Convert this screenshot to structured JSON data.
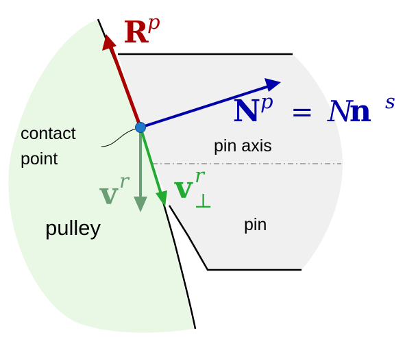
{
  "labels": {
    "contact_point_line1": "contact",
    "contact_point_line2": "point",
    "pin_axis": "pin axis",
    "pin": "pin",
    "pulley": "pulley"
  },
  "vectors": {
    "R": {
      "symbol": "R",
      "superscript": "p"
    },
    "N": {
      "symbol": "N",
      "superscript": "p",
      "equals": "=",
      "scalar": "N",
      "unit": "n",
      "unit_superscript": "s"
    },
    "v": {
      "symbol": "v",
      "superscript": "r"
    },
    "v_perp": {
      "symbol": "v",
      "superscript": "r",
      "subscript": "⊥"
    }
  },
  "colors": {
    "pulley_fill": "#e8f8e4",
    "pin_fill": "#f0f0f0",
    "outline": "#000000",
    "dashed_axis": "#808080",
    "R_arrow": "#aa0000",
    "N_arrow": "#0000aa",
    "v_arrow": "#6a9e74",
    "v_perp_arrow": "#22aa33",
    "contact_dot": "#1f78c8"
  }
}
